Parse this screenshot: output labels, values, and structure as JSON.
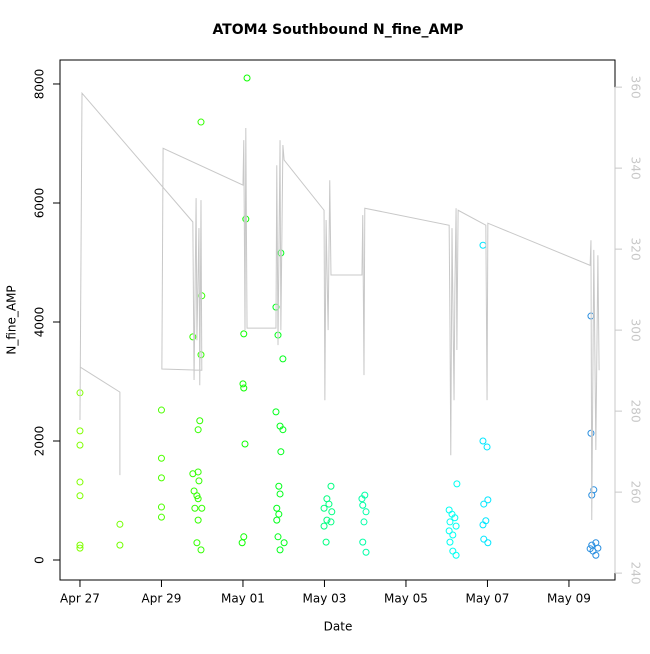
{
  "chart_data": {
    "type": "scatter",
    "title": "ATOM4 Southbound N_fine_AMP",
    "xlabel": "Date",
    "ylabel": "N_fine_AMP",
    "xlim": [
      -0.49,
      13.13
    ],
    "xticks": [
      {
        "value": 0,
        "label": "Apr 27"
      },
      {
        "value": 2,
        "label": "Apr 29"
      },
      {
        "value": 4,
        "label": "May 01"
      },
      {
        "value": 6,
        "label": "May 03"
      },
      {
        "value": 8,
        "label": "May 05"
      },
      {
        "value": 10,
        "label": "May 07"
      },
      {
        "value": 12,
        "label": "May 09"
      }
    ],
    "ylim": [
      -336,
      8403
    ],
    "yticks": [
      0,
      2000,
      4000,
      6000,
      8000
    ],
    "y2lim": [
      238.3,
      366.7
    ],
    "y2ticks": [
      240,
      260,
      280,
      300,
      320,
      340,
      360
    ],
    "y2_color": "#c8c8c8",
    "grid": false,
    "series": [
      {
        "marker": "circle",
        "x": [
          0,
          0,
          0,
          0,
          0,
          0,
          0,
          0.98,
          0.98,
          2.0,
          2.0,
          2.0,
          2.0,
          2.0,
          2.77,
          2.97,
          2.99,
          2.97,
          2.94,
          2.9,
          2.77,
          2.9,
          2.92,
          2.8,
          2.87,
          2.9,
          2.82,
          2.99,
          2.9,
          2.87,
          2.97,
          4.1,
          4.07,
          4.02,
          4.0,
          4.02,
          4.05,
          4.02,
          3.98,
          4.93,
          4.81,
          4.86,
          4.98,
          4.81,
          4.91,
          4.98,
          4.93,
          4.88,
          4.91,
          4.83,
          4.88,
          4.83,
          4.86,
          5.01,
          4.91,
          6.16,
          6.06,
          6.11,
          5.99,
          6.18,
          6.06,
          5.99,
          6.16,
          6.04,
          6.99,
          6.92,
          6.94,
          7.02,
          6.97,
          6.94,
          7.02,
          9.25,
          9.06,
          9.13,
          9.2,
          9.08,
          9.23,
          9.06,
          9.15,
          9.08,
          9.15,
          9.23,
          9.89,
          9.89,
          9.99,
          10.01,
          9.91,
          9.96,
          9.89,
          9.91,
          10.01,
          12.54,
          12.54,
          12.61,
          12.56,
          12.66,
          12.56,
          12.71,
          12.59,
          12.66,
          12.52
        ],
        "values": [
          2810,
          2170,
          1930,
          1310,
          1080,
          250,
          200,
          600,
          250,
          2520,
          1710,
          1380,
          890,
          720,
          3750,
          7360,
          4440,
          3450,
          2340,
          2190,
          1450,
          1480,
          1330,
          1160,
          1080,
          1030,
          870,
          870,
          670,
          290,
          170,
          8100,
          5730,
          3800,
          2960,
          2890,
          1950,
          390,
          290,
          5160,
          4250,
          3780,
          3380,
          2490,
          2250,
          2190,
          1820,
          1240,
          1110,
          870,
          770,
          670,
          390,
          290,
          170,
          1240,
          1030,
          940,
          870,
          810,
          670,
          570,
          640,
          300,
          1090,
          1030,
          920,
          810,
          640,
          300,
          130,
          1280,
          840,
          770,
          710,
          640,
          570,
          490,
          420,
          300,
          150,
          80,
          5290,
          2000,
          1900,
          1010,
          940,
          660,
          590,
          350,
          290,
          4100,
          2130,
          1180,
          1090,
          290,
          250,
          200,
          150,
          80,
          190
        ],
        "colors": [
          "#80ff00",
          "#80ff00",
          "#80ff00",
          "#80ff00",
          "#80ff00",
          "#80ff00",
          "#80ff00",
          "#73ff00",
          "#73ff00",
          "#4dff00",
          "#4dff00",
          "#4dff00",
          "#4dff00",
          "#4dff00",
          "#33ff00",
          "#33ff00",
          "#33ff00",
          "#33ff00",
          "#33ff00",
          "#33ff00",
          "#33ff00",
          "#33ff00",
          "#33ff00",
          "#33ff00",
          "#33ff00",
          "#33ff00",
          "#33ff00",
          "#33ff00",
          "#33ff00",
          "#33ff00",
          "#33ff00",
          "#0dff00",
          "#0dff00",
          "#0dff00",
          "#0dff00",
          "#0dff00",
          "#0dff00",
          "#0dff00",
          "#0dff00",
          "#00ff1a",
          "#00ff1a",
          "#00ff1a",
          "#00ff1a",
          "#00ff1a",
          "#00ff1a",
          "#00ff1a",
          "#00ff1a",
          "#00ff1a",
          "#00ff1a",
          "#00ff1a",
          "#00ff1a",
          "#00ff1a",
          "#00ff1a",
          "#00ff1a",
          "#00ff1a",
          "#00ff80",
          "#00ff80",
          "#00ff80",
          "#00ff80",
          "#00ff80",
          "#00ff80",
          "#00ff80",
          "#00ff80",
          "#00ff80",
          "#00ffa6",
          "#00ffa6",
          "#00ffa6",
          "#00ffa6",
          "#00ffa6",
          "#00ffa6",
          "#00ffa6",
          "#00fff2",
          "#00fff2",
          "#00fff2",
          "#00fff2",
          "#00fff2",
          "#00fff2",
          "#00fff2",
          "#00fff2",
          "#00fff2",
          "#00fff2",
          "#00fff2",
          "#00e6ff",
          "#00e6ff",
          "#00e6ff",
          "#00e6ff",
          "#00e6ff",
          "#00e6ff",
          "#00e6ff",
          "#00e6ff",
          "#00e6ff",
          "#2a8fe0",
          "#2a8fe0",
          "#2a8fe0",
          "#2a8fe0",
          "#2a8fe0",
          "#2a8fe0",
          "#2a8fe0",
          "#2a8fe0",
          "#2a8fe0",
          "#2a8fe0"
        ]
      },
      {
        "marker": "line",
        "axis": "y2",
        "color": "#c8c8c8",
        "x": [
          0,
          0.98,
          0.98,
          null,
          0,
          0.05,
          2.77,
          2.8,
          2.85,
          2.87,
          2.92,
          2.94,
          2.97,
          2.99,
          2.01,
          2.04,
          4.0,
          4.02,
          4.05,
          4.07,
          4.1,
          4.81,
          4.83,
          4.86,
          4.91,
          4.93,
          4.98,
          5.01,
          5.99,
          6.01,
          6.04,
          6.09,
          6.13,
          6.16,
          6.92,
          6.94,
          6.97,
          6.99,
          9.06,
          9.08,
          9.1,
          9.13,
          9.18,
          9.2,
          9.23,
          9.25,
          9.28,
          9.96,
          9.99,
          10.01,
          12.52,
          12.54,
          12.56,
          12.61,
          12.66,
          12.71,
          12.74
        ],
        "values": [
          290.9,
          284.7,
          264.2,
          null,
          277.8,
          358.5,
          326.7,
          287.7,
          332.6,
          297.5,
          325.2,
          286.4,
          332.1,
          290.1,
          290.4,
          344.9,
          335.8,
          346.9,
          300.0,
          349.9,
          300.5,
          300.5,
          340.7,
          296.3,
          346.9,
          300.0,
          345.7,
          342.0,
          329.6,
          282.7,
          327.2,
          300.0,
          337.0,
          313.6,
          313.6,
          328.4,
          288.9,
          330.1,
          325.9,
          301.2,
          269.1,
          325.2,
          282.7,
          309.9,
          330.1,
          295.1,
          329.6,
          325.9,
          282.7,
          326.4,
          316.0,
          322.2,
          253.1,
          319.8,
          270.4,
          318.5,
          290.1
        ]
      }
    ]
  }
}
